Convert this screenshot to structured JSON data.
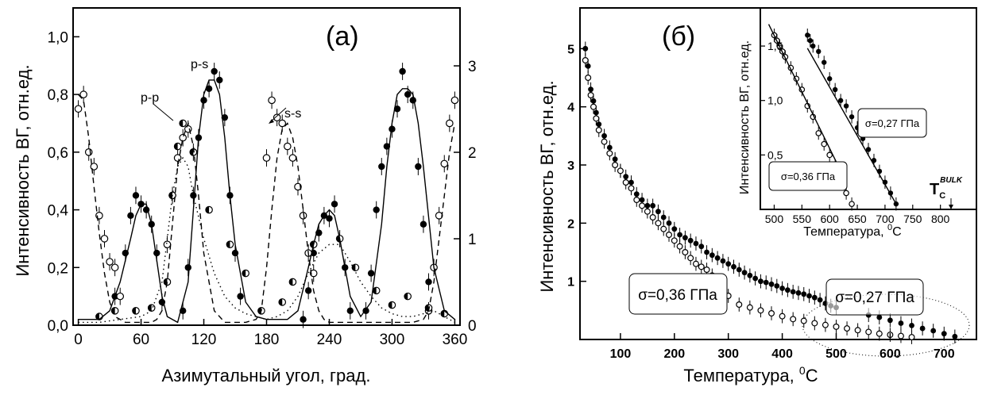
{
  "chart_data": [
    {
      "type": "scatter",
      "panel_label": "(a)",
      "xlabel": "Азимутальный угол, град.",
      "ylabel": "Интенсивность ВГ, отн.ед.",
      "xlim": [
        -5,
        365
      ],
      "ylim_left": [
        0,
        1.1
      ],
      "ylim_right": [
        0,
        3.67
      ],
      "x_ticks": [
        "0",
        "60",
        "120",
        "180",
        "240",
        "300",
        "360"
      ],
      "y_ticks_left": [
        "0,0",
        "0,2",
        "0,4",
        "0,6",
        "0,8",
        "1,0"
      ],
      "y_ticks_right": [
        "0",
        "1",
        "2",
        "3"
      ],
      "annotations": [
        "p-s",
        "p-p",
        "s-s"
      ],
      "series": [
        {
          "name": "p-s",
          "marker": "filled-circle",
          "x": [
            35,
            45,
            50,
            55,
            60,
            65,
            70,
            75,
            80,
            100,
            105,
            110,
            115,
            120,
            125,
            130,
            135,
            140,
            145,
            150,
            155,
            215,
            220,
            225,
            230,
            235,
            240,
            245,
            250,
            255,
            260,
            275,
            280,
            285,
            290,
            295,
            300,
            305,
            310,
            315,
            320,
            325,
            330,
            335
          ],
          "y": [
            0.1,
            0.25,
            0.38,
            0.45,
            0.42,
            0.4,
            0.35,
            0.25,
            0.08,
            0.05,
            0.2,
            0.45,
            0.65,
            0.78,
            0.82,
            0.88,
            0.85,
            0.72,
            0.45,
            0.25,
            0.1,
            0.02,
            0.12,
            0.25,
            0.32,
            0.38,
            0.37,
            0.42,
            0.3,
            0.2,
            0.05,
            0.05,
            0.18,
            0.4,
            0.55,
            0.62,
            0.68,
            0.75,
            0.88,
            0.8,
            0.78,
            0.55,
            0.35,
            0.15
          ]
        },
        {
          "name": "s-s",
          "marker": "open-circle",
          "x": [
            0,
            5,
            10,
            15,
            20,
            25,
            30,
            35,
            40,
            85,
            90,
            95,
            100,
            105,
            110,
            180,
            185,
            190,
            195,
            200,
            205,
            210,
            215,
            220,
            225,
            335,
            340,
            345,
            350,
            355,
            360
          ],
          "y": [
            0.75,
            0.8,
            0.6,
            0.55,
            0.38,
            0.3,
            0.22,
            0.2,
            0.1,
            0.28,
            0.45,
            0.58,
            0.65,
            0.68,
            0.6,
            0.58,
            0.78,
            0.72,
            0.7,
            0.62,
            0.58,
            0.48,
            0.38,
            0.25,
            0.18,
            0.05,
            0.2,
            0.38,
            0.56,
            0.7,
            0.78
          ]
        },
        {
          "name": "p-p",
          "marker": "half-filled-circle",
          "x": [
            20,
            35,
            55,
            70,
            85,
            90,
            95,
            100,
            110,
            125,
            145,
            160,
            175,
            195,
            205,
            225,
            250,
            265,
            285,
            300,
            315,
            335,
            350
          ],
          "y": [
            0.03,
            0.05,
            0.05,
            0.06,
            0.15,
            0.45,
            0.62,
            0.7,
            0.6,
            0.4,
            0.28,
            0.18,
            0.05,
            0.08,
            0.15,
            0.28,
            0.3,
            0.2,
            0.12,
            0.07,
            0.1,
            0.06,
            0.04
          ]
        },
        {
          "name": "p-s fit",
          "line": "solid",
          "x": [
            0,
            20,
            30,
            40,
            50,
            55,
            60,
            65,
            70,
            80,
            85,
            95,
            105,
            110,
            115,
            120,
            125,
            130,
            135,
            140,
            145,
            150,
            160,
            170,
            180,
            190,
            200,
            210,
            220,
            225,
            230,
            235,
            240,
            245,
            250,
            255,
            260,
            270,
            280,
            290,
            295,
            300,
            305,
            310,
            315,
            320,
            325,
            330,
            340,
            350,
            360
          ],
          "y": [
            0.02,
            0.02,
            0.05,
            0.15,
            0.3,
            0.38,
            0.42,
            0.42,
            0.35,
            0.1,
            0.03,
            0.01,
            0.15,
            0.4,
            0.65,
            0.8,
            0.85,
            0.85,
            0.8,
            0.65,
            0.45,
            0.28,
            0.08,
            0.03,
            0.02,
            0.02,
            0.02,
            0.05,
            0.2,
            0.28,
            0.35,
            0.38,
            0.4,
            0.38,
            0.3,
            0.2,
            0.1,
            0.03,
            0.08,
            0.35,
            0.55,
            0.7,
            0.8,
            0.82,
            0.82,
            0.8,
            0.7,
            0.55,
            0.2,
            0.05,
            0.02
          ]
        },
        {
          "name": "s-s fit",
          "line": "dashed",
          "x": [
            0,
            5,
            10,
            15,
            20,
            25,
            30,
            35,
            40,
            45,
            50,
            55,
            60,
            65,
            70,
            75,
            80,
            85,
            90,
            95,
            100,
            105,
            110,
            115,
            120,
            130,
            140,
            150,
            160,
            170,
            175,
            180,
            185,
            190,
            195,
            200,
            205,
            210,
            215,
            220,
            225,
            230,
            235,
            240,
            250,
            260,
            270,
            280,
            290,
            300,
            310,
            320,
            330,
            335,
            340,
            345,
            350,
            355,
            360
          ],
          "y": [
            0.8,
            0.78,
            0.65,
            0.48,
            0.32,
            0.18,
            0.08,
            0.03,
            0.02,
            0.01,
            0.01,
            0.01,
            0.01,
            0.01,
            0.01,
            0.02,
            0.05,
            0.15,
            0.35,
            0.55,
            0.65,
            0.7,
            0.62,
            0.45,
            0.25,
            0.05,
            0.01,
            0.01,
            0.01,
            0.02,
            0.05,
            0.2,
            0.4,
            0.58,
            0.68,
            0.7,
            0.65,
            0.55,
            0.4,
            0.25,
            0.12,
            0.05,
            0.02,
            0.01,
            0.01,
            0.01,
            0.01,
            0.01,
            0.01,
            0.01,
            0.01,
            0.01,
            0.02,
            0.05,
            0.15,
            0.3,
            0.45,
            0.6,
            0.7
          ]
        },
        {
          "name": "p-p fit",
          "line": "dotted",
          "x": [
            0,
            20,
            40,
            60,
            70,
            80,
            85,
            90,
            95,
            100,
            105,
            110,
            120,
            130,
            140,
            150,
            160,
            170,
            180,
            190,
            200,
            210,
            220,
            230,
            240,
            250,
            260,
            270,
            280,
            290,
            300,
            310,
            320,
            330,
            340,
            350,
            360
          ],
          "y": [
            0.01,
            0.01,
            0.02,
            0.03,
            0.05,
            0.15,
            0.3,
            0.45,
            0.55,
            0.58,
            0.55,
            0.45,
            0.3,
            0.18,
            0.1,
            0.06,
            0.04,
            0.03,
            0.02,
            0.03,
            0.05,
            0.1,
            0.18,
            0.25,
            0.28,
            0.28,
            0.22,
            0.15,
            0.1,
            0.06,
            0.04,
            0.03,
            0.03,
            0.04,
            0.05,
            0.03,
            0.01
          ]
        }
      ]
    },
    {
      "type": "scatter",
      "panel_label": "(б)",
      "xlabel": "Температура, ",
      "xlabel_sup": "0",
      "xlabel_tail": "C",
      "ylabel": "Интенсивность ВГ, отн.ед.",
      "xlim": [
        25,
        760
      ],
      "ylim": [
        0,
        5.7
      ],
      "x_ticks": [
        "100",
        "200",
        "300",
        "400",
        "500",
        "600",
        "700"
      ],
      "y_ticks": [
        "1",
        "2",
        "3",
        "4",
        "5"
      ],
      "boxes": [
        "σ=0,36 ГПа",
        "σ=0,27 ГПа"
      ],
      "series": [
        {
          "name": "σ=0,27 ГПа",
          "marker": "filled-circle",
          "x": [
            35,
            40,
            45,
            50,
            55,
            60,
            70,
            80,
            90,
            100,
            110,
            120,
            130,
            140,
            150,
            160,
            170,
            180,
            190,
            200,
            210,
            220,
            230,
            240,
            250,
            260,
            270,
            280,
            290,
            300,
            310,
            320,
            330,
            340,
            350,
            360,
            370,
            380,
            390,
            400,
            410,
            420,
            430,
            440,
            450,
            460,
            470,
            480,
            490,
            500,
            560,
            580,
            600,
            620,
            640,
            660,
            680,
            700,
            720
          ],
          "y": [
            5.0,
            4.7,
            4.3,
            4.1,
            3.9,
            3.7,
            3.5,
            3.3,
            3.1,
            2.9,
            2.8,
            2.7,
            2.5,
            2.4,
            2.3,
            2.3,
            2.2,
            2.1,
            2.0,
            1.9,
            1.8,
            1.75,
            1.7,
            1.65,
            1.6,
            1.5,
            1.45,
            1.4,
            1.35,
            1.3,
            1.25,
            1.2,
            1.15,
            1.1,
            1.05,
            1.0,
            0.98,
            0.95,
            0.92,
            0.88,
            0.85,
            0.82,
            0.8,
            0.78,
            0.75,
            0.72,
            0.68,
            0.62,
            0.58,
            0.55,
            0.42,
            0.38,
            0.33,
            0.28,
            0.24,
            0.19,
            0.15,
            0.1,
            0.05
          ]
        },
        {
          "name": "σ=0,36 ГПа",
          "marker": "open-circle",
          "x": [
            35,
            40,
            45,
            50,
            55,
            60,
            70,
            80,
            90,
            100,
            110,
            120,
            130,
            140,
            150,
            160,
            170,
            180,
            190,
            200,
            210,
            220,
            230,
            240,
            250,
            260,
            270,
            280,
            290,
            300,
            320,
            340,
            360,
            380,
            400,
            420,
            440,
            460,
            480,
            500,
            520,
            540,
            560,
            580,
            600,
            620,
            640
          ],
          "y": [
            4.8,
            4.5,
            4.2,
            4.0,
            3.8,
            3.6,
            3.4,
            3.2,
            3.0,
            2.9,
            2.7,
            2.6,
            2.4,
            2.3,
            2.2,
            2.1,
            2.0,
            1.9,
            1.8,
            1.7,
            1.6,
            1.5,
            1.4,
            1.3,
            1.25,
            1.2,
            1.1,
            0.95,
            0.85,
            0.75,
            0.6,
            0.55,
            0.5,
            0.45,
            0.4,
            0.35,
            0.32,
            0.28,
            0.25,
            0.22,
            0.19,
            0.16,
            0.13,
            0.1,
            0.08,
            0.06,
            0.04
          ]
        }
      ]
    },
    {
      "type": "scatter",
      "panel_label": "inset",
      "xlabel": "Температура, ",
      "xlabel_sup": "0",
      "xlabel_tail": "C",
      "ylabel": "Интенсивность ВГ, отн.ед.",
      "xlim": [
        475,
        865
      ],
      "ylim": [
        0,
        1.85
      ],
      "x_ticks": [
        "500",
        "550",
        "600",
        "650",
        "700",
        "750",
        "800"
      ],
      "y_ticks": [
        "0,5",
        "1,0",
        "1,5"
      ],
      "boxes": [
        "σ=0,27 ГПа",
        "σ=0,36 ГПа"
      ],
      "annotation": "T",
      "annotation_sub": "C",
      "annotation_sup": "BULK",
      "series": [
        {
          "name": "σ=0,27 ГПа",
          "marker": "filled-circle",
          "x": [
            560,
            565,
            570,
            580,
            590,
            600,
            610,
            620,
            630,
            640,
            650,
            660,
            670,
            680,
            690,
            700,
            710,
            720
          ],
          "y": [
            1.6,
            1.55,
            1.5,
            1.45,
            1.35,
            1.2,
            1.1,
            1.0,
            0.95,
            0.85,
            0.75,
            0.65,
            0.55,
            0.45,
            0.35,
            0.25,
            0.15,
            0.05
          ]
        },
        {
          "name": "σ=0,36 ГПа",
          "marker": "open-circle",
          "x": [
            500,
            505,
            510,
            515,
            520,
            530,
            540,
            550,
            560,
            570,
            580,
            590,
            600,
            610,
            620,
            630,
            640
          ],
          "y": [
            1.6,
            1.55,
            1.5,
            1.45,
            1.4,
            1.3,
            1.2,
            1.1,
            0.95,
            0.85,
            0.7,
            0.6,
            0.5,
            0.4,
            0.3,
            0.15,
            0.05
          ]
        },
        {
          "name": "σ=0,27 ГПа fit",
          "line": "solid",
          "x": [
            560,
            720
          ],
          "y": [
            1.48,
            0.05
          ]
        },
        {
          "name": "σ=0,36 ГПа fit",
          "line": "solid",
          "x": [
            490,
            630
          ],
          "y": [
            1.7,
            0.25
          ]
        }
      ]
    }
  ]
}
